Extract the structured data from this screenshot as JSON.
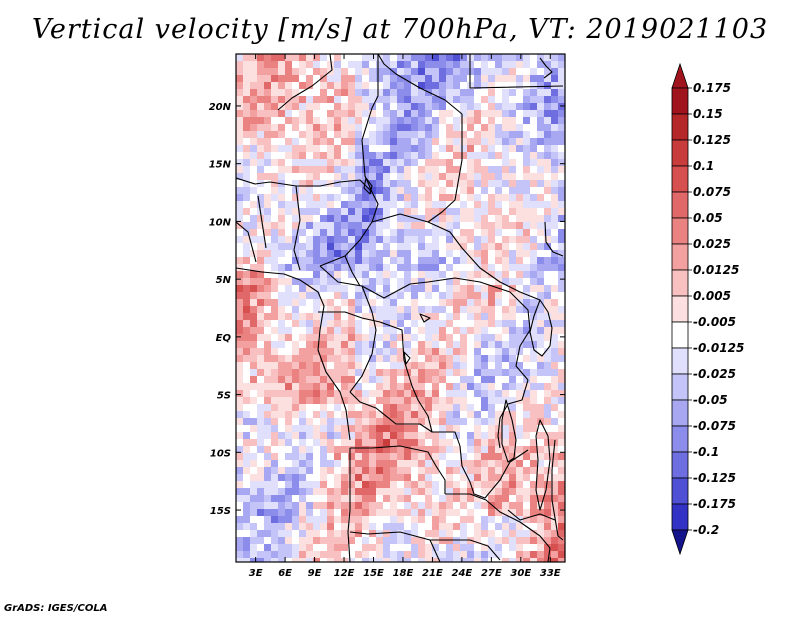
{
  "title": "Vertical velocity [m/s] at 700hPa, VT: 2019021103",
  "footer": "GrADS: IGES/COLA",
  "map": {
    "field": "Vertical velocity",
    "units": "m/s",
    "level": "700hPa",
    "valid_time": "2019021103",
    "lon_range": [
      1.0,
      34.5
    ],
    "lat_range": [
      -19.5,
      24.5
    ],
    "lon_ticks": [
      {
        "value": 3,
        "label": "3E"
      },
      {
        "value": 6,
        "label": "6E"
      },
      {
        "value": 9,
        "label": "9E"
      },
      {
        "value": 12,
        "label": "12E"
      },
      {
        "value": 15,
        "label": "15E"
      },
      {
        "value": 18,
        "label": "18E"
      },
      {
        "value": 21,
        "label": "21E"
      },
      {
        "value": 24,
        "label": "24E"
      },
      {
        "value": 27,
        "label": "27E"
      },
      {
        "value": 30,
        "label": "30E"
      },
      {
        "value": 33,
        "label": "33E"
      }
    ],
    "lat_ticks": [
      {
        "value": 20,
        "label": "20N"
      },
      {
        "value": 15,
        "label": "15N"
      },
      {
        "value": 10,
        "label": "10N"
      },
      {
        "value": 5,
        "label": "5N"
      },
      {
        "value": 0,
        "label": "EQ"
      },
      {
        "value": -5,
        "label": "5S"
      },
      {
        "value": -10,
        "label": "10S"
      },
      {
        "value": -15,
        "label": "15S"
      }
    ]
  },
  "colorbar": {
    "levels": [
      {
        "label": "0.175",
        "color": "#a0141e"
      },
      {
        "label": "0.15",
        "color": "#b4282a"
      },
      {
        "label": "0.125",
        "color": "#c83c3c"
      },
      {
        "label": "0.1",
        "color": "#d65050"
      },
      {
        "label": "0.075",
        "color": "#e06868"
      },
      {
        "label": "0.05",
        "color": "#ea8282"
      },
      {
        "label": "0.025",
        "color": "#f2a0a0"
      },
      {
        "label": "0.0125",
        "color": "#f8c0c0"
      },
      {
        "label": "0.005",
        "color": "#fce0e0"
      },
      {
        "label": "-0.005",
        "color": "#ffffff"
      },
      {
        "label": "-0.0125",
        "color": "#e0e0fc"
      },
      {
        "label": "-0.025",
        "color": "#c4c4f8"
      },
      {
        "label": "-0.05",
        "color": "#a8a8f2"
      },
      {
        "label": "-0.075",
        "color": "#8c8cea"
      },
      {
        "label": "-0.1",
        "color": "#6e6ee0"
      },
      {
        "label": "-0.125",
        "color": "#5050d4"
      },
      {
        "label": "-0.175",
        "color": "#3232c4"
      },
      {
        "label": "-0.2",
        "color": "#1e1eb0"
      }
    ],
    "top_cap_color": "#a0141e",
    "bottom_cap_color": "#14148c"
  }
}
